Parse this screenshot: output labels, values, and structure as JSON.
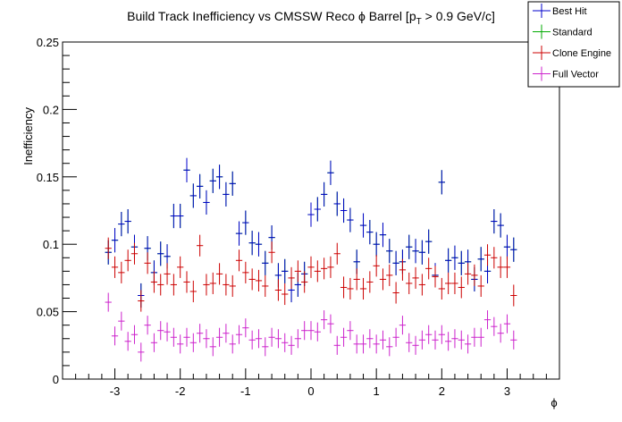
{
  "chart_data": {
    "type": "scatter",
    "title_main": "Build Track Inefficiency vs CMSSW Reco ",
    "title_phi": "ϕ",
    "title_barrel": " Barrel [p",
    "title_sub": "T",
    "title_tail": " > 0.9 GeV/c]",
    "xlabel": "ϕ",
    "ylabel": "Inefficiency",
    "xlim": [
      -3.8,
      3.8
    ],
    "ylim": [
      0,
      0.25
    ],
    "x_ticks": [
      -3,
      -2,
      -1,
      0,
      1,
      2,
      3
    ],
    "x_tick_labels": [
      "-3",
      "-2",
      "-1",
      "0",
      "1",
      "2",
      "3"
    ],
    "y_ticks": [
      0,
      0.05,
      0.1,
      0.15,
      0.2,
      0.25
    ],
    "y_tick_labels": [
      "0",
      "0.05",
      "0.1",
      "0.15",
      "0.2",
      "0.25"
    ],
    "grid": false,
    "legend_position": "top-right",
    "x_bin_halfwidth": 0.0497,
    "x": [
      -3.1,
      -3.0,
      -2.9,
      -2.8,
      -2.7,
      -2.6,
      -2.5,
      -2.4,
      -2.3,
      -2.2,
      -2.1,
      -2.0,
      -1.9,
      -1.8,
      -1.7,
      -1.6,
      -1.5,
      -1.4,
      -1.3,
      -1.2,
      -1.1,
      -1.0,
      -0.9,
      -0.8,
      -0.7,
      -0.6,
      -0.5,
      -0.4,
      -0.3,
      -0.2,
      -0.1,
      0.0,
      0.1,
      0.2,
      0.3,
      0.4,
      0.5,
      0.6,
      0.7,
      0.8,
      0.9,
      1.0,
      1.1,
      1.2,
      1.3,
      1.4,
      1.5,
      1.6,
      1.7,
      1.8,
      1.9,
      2.0,
      2.1,
      2.2,
      2.3,
      2.4,
      2.5,
      2.6,
      2.7,
      2.8,
      2.9,
      3.0,
      3.1
    ],
    "series": [
      {
        "name": "Best Hit",
        "color": "#0000cc",
        "err": 0.009,
        "values": [
          0.094,
          0.103,
          0.115,
          0.117,
          0.098,
          0.062,
          0.097,
          0.079,
          0.093,
          0.091,
          0.121,
          0.121,
          0.155,
          0.136,
          0.143,
          0.131,
          0.147,
          0.15,
          0.137,
          0.145,
          0.108,
          0.116,
          0.101,
          0.1,
          0.086,
          0.105,
          0.077,
          0.08,
          0.066,
          0.07,
          0.078,
          0.122,
          0.126,
          0.137,
          0.153,
          0.13,
          0.125,
          0.118,
          0.087,
          0.114,
          0.109,
          0.1,
          0.107,
          0.095,
          0.086,
          0.087,
          0.098,
          0.095,
          0.094,
          0.102,
          0.077,
          0.146,
          0.088,
          0.09,
          0.086,
          0.087,
          0.074,
          0.089,
          0.08,
          0.117,
          0.114,
          0.098,
          0.096
        ]
      },
      {
        "name": "Standard",
        "color": "#00aa00",
        "err": 0.009,
        "values": [
          0.094,
          0.103,
          0.115,
          0.117,
          0.098,
          0.062,
          0.097,
          0.079,
          0.093,
          0.091,
          0.121,
          0.121,
          0.155,
          0.136,
          0.143,
          0.131,
          0.147,
          0.15,
          0.137,
          0.145,
          0.108,
          0.116,
          0.101,
          0.1,
          0.086,
          0.105,
          0.077,
          0.08,
          0.066,
          0.07,
          0.078,
          0.122,
          0.126,
          0.137,
          0.153,
          0.13,
          0.125,
          0.118,
          0.087,
          0.114,
          0.109,
          0.1,
          0.107,
          0.095,
          0.086,
          0.087,
          0.098,
          0.095,
          0.094,
          0.102,
          0.077,
          0.146,
          0.088,
          0.09,
          0.086,
          0.087,
          0.074,
          0.089,
          0.08,
          0.117,
          0.114,
          0.098,
          0.096
        ]
      },
      {
        "name": "Clone Engine",
        "color": "#cc0000",
        "err": 0.008,
        "values": [
          0.097,
          0.083,
          0.079,
          0.088,
          0.093,
          0.058,
          0.086,
          0.072,
          0.07,
          0.078,
          0.07,
          0.083,
          0.072,
          0.065,
          0.099,
          0.07,
          0.071,
          0.078,
          0.07,
          0.069,
          0.088,
          0.079,
          0.074,
          0.073,
          0.069,
          0.094,
          0.066,
          0.063,
          0.075,
          0.08,
          0.072,
          0.083,
          0.08,
          0.082,
          0.083,
          0.093,
          0.068,
          0.067,
          0.074,
          0.067,
          0.072,
          0.084,
          0.074,
          0.077,
          0.064,
          0.081,
          0.071,
          0.075,
          0.07,
          0.082,
          0.076,
          0.067,
          0.071,
          0.071,
          0.068,
          0.078,
          0.077,
          0.069,
          0.092,
          0.09,
          0.083,
          0.083,
          0.062
        ]
      },
      {
        "name": "Full Vector",
        "color": "#cc22cc",
        "err": 0.007,
        "values": [
          0.057,
          0.032,
          0.043,
          0.028,
          0.033,
          0.02,
          0.04,
          0.027,
          0.036,
          0.035,
          0.031,
          0.026,
          0.031,
          0.027,
          0.034,
          0.03,
          0.024,
          0.031,
          0.034,
          0.026,
          0.033,
          0.038,
          0.029,
          0.03,
          0.024,
          0.031,
          0.03,
          0.027,
          0.025,
          0.03,
          0.036,
          0.036,
          0.035,
          0.044,
          0.041,
          0.025,
          0.031,
          0.036,
          0.026,
          0.026,
          0.03,
          0.026,
          0.029,
          0.024,
          0.031,
          0.04,
          0.027,
          0.025,
          0.029,
          0.033,
          0.029,
          0.033,
          0.028,
          0.03,
          0.029,
          0.026,
          0.031,
          0.031,
          0.044,
          0.039,
          0.034,
          0.041,
          0.029
        ]
      }
    ]
  }
}
